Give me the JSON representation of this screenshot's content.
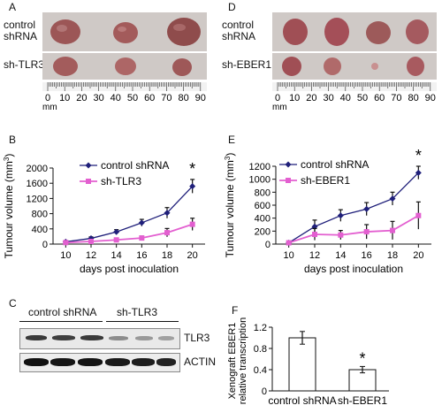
{
  "panels": {
    "A": {
      "letter": "A",
      "row1_label": [
        "control",
        "shRNA"
      ],
      "row2_label": "sh-TLR3",
      "ruler_ticks": [
        "0",
        "10",
        "20",
        "30",
        "40",
        "50",
        "60",
        "70",
        "80",
        "90"
      ],
      "ruler_unit": "mm"
    },
    "D": {
      "letter": "D",
      "row1_label": [
        "control",
        "shRNA"
      ],
      "row2_label": "sh-EBER1",
      "ruler_ticks": [
        "0",
        "10",
        "20",
        "30",
        "40",
        "50",
        "60",
        "70",
        "80",
        "90"
      ],
      "ruler_unit": "mm"
    },
    "B": {
      "letter": "B"
    },
    "E": {
      "letter": "E"
    },
    "C": {
      "letter": "C",
      "group1": "control shRNA",
      "group2": "sh-TLR3",
      "band1_label": "TLR3",
      "band2_label": "ACTIN"
    },
    "F": {
      "letter": "F"
    }
  },
  "colors": {
    "control_series": "#1f1f7a",
    "knockdown_series": "#e35fd0",
    "photo_bg": "#cfc9c6",
    "tumour": "#a65a5a"
  },
  "chart_data": [
    {
      "id": "B",
      "type": "line",
      "xlabel": "days post inoculation",
      "ylabel": "Tumour volume (mm3)",
      "x": [
        10,
        12,
        14,
        16,
        18,
        20
      ],
      "xlim": [
        9,
        21
      ],
      "ylim": [
        0,
        2000
      ],
      "yticks": [
        0,
        400,
        800,
        1200,
        1600,
        2000
      ],
      "legend": "top-left",
      "series": [
        {
          "name": "control shRNA",
          "values": [
            60,
            150,
            320,
            560,
            820,
            1520
          ],
          "errors": [
            20,
            40,
            60,
            90,
            140,
            180
          ]
        },
        {
          "name": "sh-TLR3",
          "values": [
            40,
            70,
            110,
            160,
            300,
            520
          ],
          "errors": [
            15,
            25,
            40,
            50,
            110,
            160
          ]
        }
      ],
      "annotation": "*"
    },
    {
      "id": "E",
      "type": "line",
      "xlabel": "days post inoculation",
      "ylabel": "Tumour volume (mm3)",
      "x": [
        10,
        12,
        14,
        16,
        18,
        20
      ],
      "xlim": [
        9,
        21
      ],
      "ylim": [
        0,
        1200
      ],
      "yticks": [
        0,
        200,
        400,
        600,
        800,
        1000,
        1200
      ],
      "legend": "top-left",
      "series": [
        {
          "name": "control shRNA",
          "values": [
            20,
            270,
            440,
            540,
            700,
            1100
          ],
          "errors": [
            15,
            100,
            90,
            100,
            100,
            100
          ]
        },
        {
          "name": "sh-EBER1",
          "values": [
            20,
            150,
            140,
            190,
            210,
            440
          ],
          "errors": [
            15,
            90,
            70,
            110,
            140,
            210
          ]
        }
      ],
      "annotation": "*"
    },
    {
      "id": "F",
      "type": "bar",
      "ylabel": "Xenograft EBER1 relative transcription",
      "categories": [
        "control shRNA",
        "sh-EBER1"
      ],
      "values": [
        1.0,
        0.4
      ],
      "errors": [
        0.12,
        0.06
      ],
      "ylim": [
        0,
        1.2
      ],
      "yticks": [
        "0",
        "0.4",
        "0.8",
        "1.2"
      ],
      "annotation": "*"
    }
  ]
}
